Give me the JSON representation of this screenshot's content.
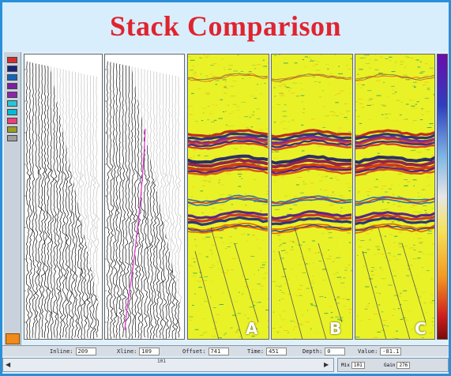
{
  "title": "Stack Comparison",
  "panels": [
    {
      "id": "gather-1",
      "type": "wiggle",
      "label": ""
    },
    {
      "id": "gather-2",
      "type": "wiggle-velocity",
      "label": ""
    },
    {
      "id": "stack-a",
      "type": "color-stack",
      "label": "A"
    },
    {
      "id": "stack-b",
      "type": "color-stack",
      "label": "B"
    },
    {
      "id": "stack-c",
      "type": "color-stack",
      "label": "C"
    }
  ],
  "toolbar_swatches": [
    "#d62e2e",
    "#1a237e",
    "#1565c0",
    "#7b1fa2",
    "#8e24aa",
    "#26c6da",
    "#00bcd4",
    "#ec407a",
    "#9e9d24",
    "#9e9e9e"
  ],
  "status": [
    {
      "label": "Inline:",
      "value": "209"
    },
    {
      "label": "Xline:",
      "value": "109"
    },
    {
      "label": "Offset:",
      "value": "741"
    },
    {
      "label": "Time:",
      "value": "451"
    },
    {
      "label": "Depth:",
      "value": "0"
    },
    {
      "label": "Value:",
      "value": "-81.1"
    }
  ],
  "scroll": {
    "position_label": "101",
    "left_arrow": "◀",
    "right_arrow": "▶"
  },
  "controls": [
    {
      "label": "Mix",
      "value": "101"
    },
    {
      "label": "Gain",
      "value": "276"
    }
  ],
  "colors": {
    "frame": "#2a8fd8",
    "title": "#e0242f",
    "velocity_curve": "#e040d0"
  }
}
